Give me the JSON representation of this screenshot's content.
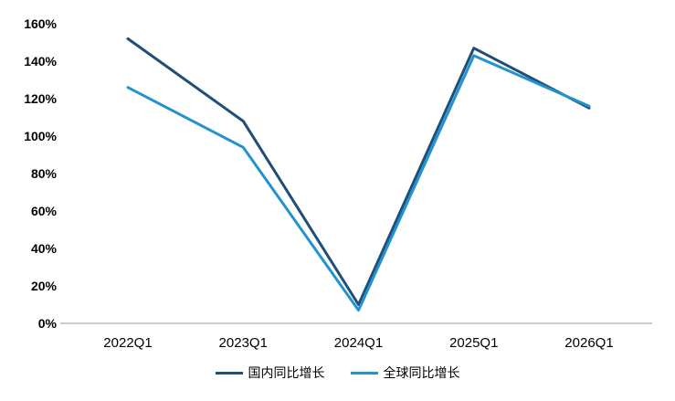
{
  "chart_data": {
    "type": "line",
    "title": "",
    "categories": [
      "2022Q1",
      "2023Q1",
      "2024Q1",
      "2025Q1",
      "2026Q1"
    ],
    "series": [
      {
        "name": "国内同比增长",
        "color": "#1f4e79",
        "values": [
          152,
          108,
          10,
          147,
          115
        ]
      },
      {
        "name": "全球同比增长",
        "color": "#2293ce",
        "values": [
          126,
          94,
          7,
          143,
          116
        ]
      }
    ],
    "xlabel": "",
    "ylabel": "",
    "ylim": [
      0,
      160
    ],
    "ytick_step": 20,
    "ytick_suffix": "%",
    "grid": false,
    "legend_position": "bottom"
  }
}
